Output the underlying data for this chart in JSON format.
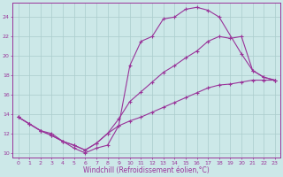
{
  "xlabel": "Windchill (Refroidissement éolien,°C)",
  "xlim": [
    -0.5,
    23.5
  ],
  "ylim": [
    9.5,
    25.5
  ],
  "xticks": [
    0,
    1,
    2,
    3,
    4,
    5,
    6,
    7,
    8,
    9,
    10,
    11,
    12,
    13,
    14,
    15,
    16,
    17,
    18,
    19,
    20,
    21,
    22,
    23
  ],
  "yticks": [
    10,
    12,
    14,
    16,
    18,
    20,
    22,
    24
  ],
  "background_color": "#cce8e8",
  "grid_color": "#aacccc",
  "line_color": "#993399",
  "line1_x": [
    0,
    1,
    2,
    3,
    4,
    5,
    6,
    7,
    8,
    9,
    10,
    11,
    12,
    13,
    14,
    15,
    16,
    17,
    18,
    20,
    21,
    22,
    23
  ],
  "line1_y": [
    13.7,
    13.0,
    12.3,
    12.0,
    11.2,
    10.5,
    10.0,
    10.5,
    10.8,
    12.8,
    19.0,
    21.5,
    22.0,
    23.8,
    24.0,
    24.8,
    25.0,
    24.7,
    24.0,
    20.2,
    18.5,
    17.8,
    17.5
  ],
  "line2_x": [
    0,
    1,
    2,
    3,
    4,
    5,
    6,
    7,
    8,
    9,
    10,
    11,
    12,
    13,
    14,
    15,
    16,
    17,
    18,
    19,
    20,
    21,
    22,
    23
  ],
  "line2_y": [
    13.7,
    13.0,
    12.3,
    11.8,
    11.2,
    10.8,
    10.3,
    11.0,
    12.0,
    13.5,
    15.3,
    16.3,
    17.3,
    18.3,
    19.0,
    19.8,
    20.5,
    21.5,
    22.0,
    21.8,
    22.0,
    18.5,
    17.8,
    17.5
  ],
  "line3_x": [
    0,
    1,
    2,
    3,
    4,
    5,
    6,
    7,
    8,
    9,
    10,
    11,
    12,
    13,
    14,
    15,
    16,
    17,
    18,
    19,
    20,
    21,
    22,
    23
  ],
  "line3_y": [
    13.7,
    13.0,
    12.3,
    11.8,
    11.2,
    10.8,
    10.3,
    11.0,
    12.0,
    12.8,
    13.3,
    13.7,
    14.2,
    14.7,
    15.2,
    15.7,
    16.2,
    16.7,
    17.0,
    17.1,
    17.3,
    17.5,
    17.5,
    17.5
  ],
  "marker": "+",
  "markersize": 3.0,
  "linewidth": 0.8,
  "font_color": "#993399",
  "tick_fontsize": 4.5,
  "label_fontsize": 5.5
}
